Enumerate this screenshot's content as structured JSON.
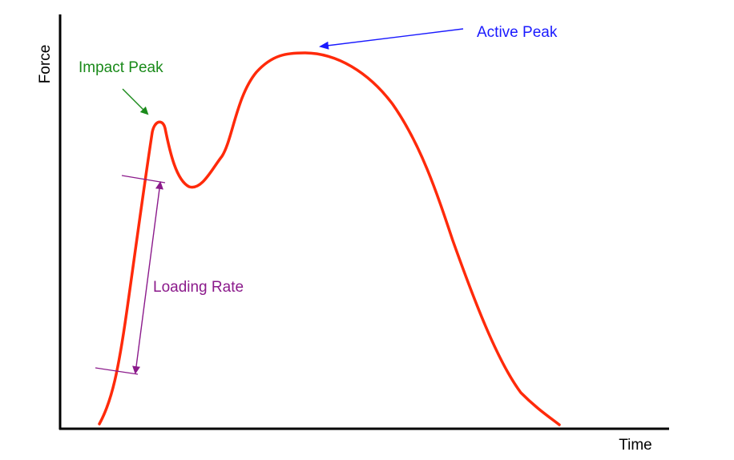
{
  "diagram": {
    "y_axis_label": "Force",
    "x_axis_label": "Time",
    "curve_color": "#ff2a0a",
    "annotations": {
      "impact_peak": {
        "text": "Impact Peak",
        "color": "#1a8a1a"
      },
      "active_peak": {
        "text": "Active Peak",
        "color": "#1a1aff"
      },
      "loading_rate": {
        "text": "Loading Rate",
        "color": "#8b1a8b"
      }
    }
  }
}
